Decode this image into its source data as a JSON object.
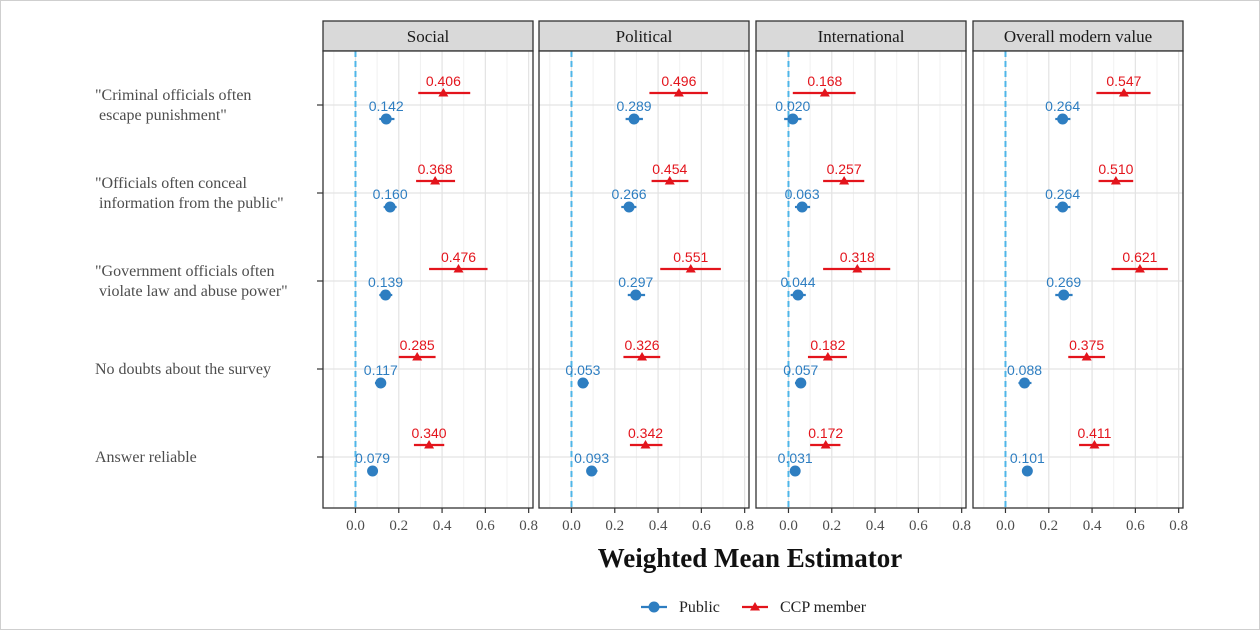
{
  "chart_data": {
    "type": "scatter",
    "xlabel": "Weighted Mean Estimator",
    "xlim": [
      -0.15,
      0.82
    ],
    "xticks": [
      0.0,
      0.2,
      0.4,
      0.6,
      0.8
    ],
    "xtick_labels": [
      "0.0",
      "0.2",
      "0.4",
      "0.6",
      "0.8"
    ],
    "reference_line_x": 0.0,
    "grid": true,
    "legend_position": "bottom",
    "colors": {
      "public": "#2E7EC1",
      "ccp": "#E3141C",
      "refline": "#4FB6E8"
    },
    "rows": [
      {
        "label_lines": [
          "\"Criminal officials often",
          " escape punishment\""
        ]
      },
      {
        "label_lines": [
          "\"Officials often conceal",
          " information from the public\""
        ]
      },
      {
        "label_lines": [
          "\"Government officials often",
          " violate law and abuse power\""
        ]
      },
      {
        "label_lines": [
          "No doubts about the survey"
        ]
      },
      {
        "label_lines": [
          "Answer reliable"
        ]
      }
    ],
    "series": [
      {
        "key": "public",
        "name": "Public",
        "marker": "circle",
        "color": "#2E7EC1"
      },
      {
        "key": "ccp",
        "name": "CCP member",
        "marker": "triangle",
        "color": "#E3141C"
      }
    ],
    "facets": [
      {
        "name": "Social",
        "public": {
          "values": [
            0.142,
            0.16,
            0.139,
            0.117,
            0.079
          ],
          "labels": [
            "0.142",
            "0.160",
            "0.139",
            "0.117",
            "0.079"
          ],
          "ci": [
            [
              0.11,
              0.18
            ],
            [
              0.13,
              0.19
            ],
            [
              0.11,
              0.17
            ],
            [
              0.09,
              0.14
            ],
            [
              0.06,
              0.1
            ]
          ]
        },
        "ccp": {
          "values": [
            0.406,
            0.368,
            0.476,
            0.285,
            0.34
          ],
          "labels": [
            "0.406",
            "0.368",
            "0.476",
            "0.285",
            "0.340"
          ],
          "ci": [
            [
              0.29,
              0.53
            ],
            [
              0.28,
              0.46
            ],
            [
              0.34,
              0.61
            ],
            [
              0.2,
              0.37
            ],
            [
              0.27,
              0.41
            ]
          ]
        }
      },
      {
        "name": "Political",
        "public": {
          "values": [
            0.289,
            0.266,
            0.297,
            0.053,
            0.093
          ],
          "labels": [
            "0.289",
            "0.266",
            "0.297",
            "0.053",
            "0.093"
          ],
          "ci": [
            [
              0.25,
              0.33
            ],
            [
              0.23,
              0.3
            ],
            [
              0.26,
              0.34
            ],
            [
              0.03,
              0.08
            ],
            [
              0.07,
              0.12
            ]
          ]
        },
        "ccp": {
          "values": [
            0.496,
            0.454,
            0.551,
            0.326,
            0.342
          ],
          "labels": [
            "0.496",
            "0.454",
            "0.551",
            "0.326",
            "0.342"
          ],
          "ci": [
            [
              0.36,
              0.63
            ],
            [
              0.37,
              0.54
            ],
            [
              0.41,
              0.69
            ],
            [
              0.24,
              0.41
            ],
            [
              0.27,
              0.42
            ]
          ]
        }
      },
      {
        "name": "International",
        "public": {
          "values": [
            0.02,
            0.063,
            0.044,
            0.057,
            0.031
          ],
          "labels": [
            "0.020",
            "0.063",
            "0.044",
            "0.057",
            "0.031"
          ],
          "ci": [
            [
              -0.02,
              0.06
            ],
            [
              0.03,
              0.1
            ],
            [
              0.01,
              0.08
            ],
            [
              0.03,
              0.08
            ],
            [
              0.01,
              0.05
            ]
          ]
        },
        "ccp": {
          "values": [
            0.168,
            0.257,
            0.318,
            0.182,
            0.172
          ],
          "labels": [
            "0.168",
            "0.257",
            "0.318",
            "0.182",
            "0.172"
          ],
          "ci": [
            [
              0.02,
              0.31
            ],
            [
              0.16,
              0.35
            ],
            [
              0.16,
              0.47
            ],
            [
              0.09,
              0.27
            ],
            [
              0.1,
              0.24
            ]
          ]
        }
      },
      {
        "name": "Overall modern value",
        "public": {
          "values": [
            0.264,
            0.264,
            0.269,
            0.088,
            0.101
          ],
          "labels": [
            "0.264",
            "0.264",
            "0.269",
            "0.088",
            "0.101"
          ],
          "ci": [
            [
              0.23,
              0.3
            ],
            [
              0.23,
              0.3
            ],
            [
              0.23,
              0.31
            ],
            [
              0.06,
              0.12
            ],
            [
              0.08,
              0.12
            ]
          ]
        },
        "ccp": {
          "values": [
            0.547,
            0.51,
            0.621,
            0.375,
            0.411
          ],
          "labels": [
            "0.547",
            "0.510",
            "0.621",
            "0.375",
            "0.411"
          ],
          "ci": [
            [
              0.42,
              0.67
            ],
            [
              0.43,
              0.59
            ],
            [
              0.49,
              0.75
            ],
            [
              0.29,
              0.46
            ],
            [
              0.34,
              0.48
            ]
          ]
        }
      }
    ]
  }
}
